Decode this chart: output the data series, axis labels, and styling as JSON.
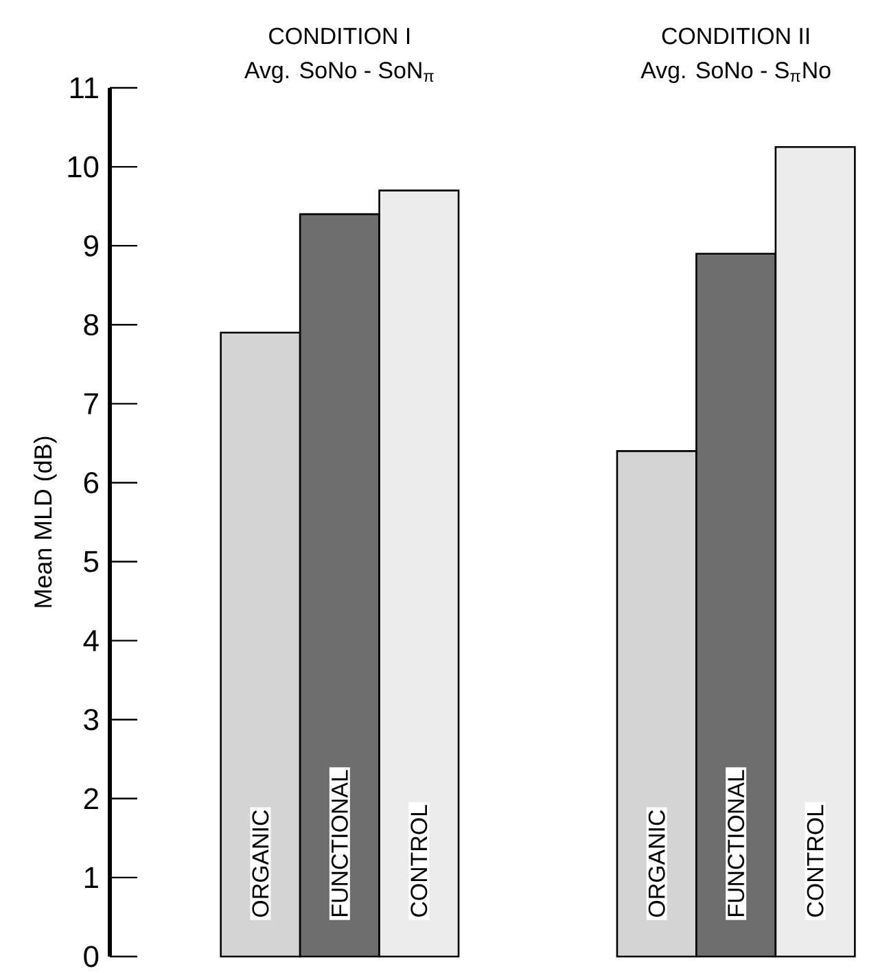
{
  "chart_data": {
    "type": "bar",
    "ylabel": "Mean MLD (dB)",
    "categories": [
      "CONDITION I",
      "CONDITION II"
    ],
    "annotations": [
      "Avg. SoNo - SoN$_{π}$",
      "Avg. SoNo - S$_{π}$No"
    ],
    "series": [
      {
        "name": "ORGANIC",
        "color": "#d4d4d4",
        "values": [
          7.9,
          6.4
        ]
      },
      {
        "name": "FUNCTIONAL",
        "color": "#6e6e6e",
        "values": [
          9.4,
          8.9
        ]
      },
      {
        "name": "CONTROL",
        "color": "#ececec",
        "values": [
          9.7,
          10.25
        ]
      }
    ],
    "ylim": [
      0,
      11
    ],
    "yticks": [
      0,
      1,
      2,
      3,
      4,
      5,
      6,
      7,
      8,
      9,
      10,
      11
    ]
  }
}
